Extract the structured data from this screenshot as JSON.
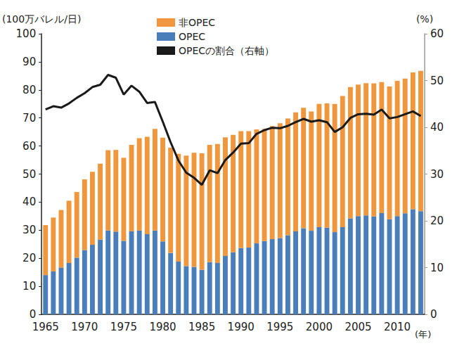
{
  "chart_data": {
    "type": "bar",
    "y_label": "(100万バレル/日)",
    "y2_label": "(%)",
    "x_label": "(年)",
    "categories": [
      "1965",
      null,
      null,
      null,
      null,
      "1970",
      null,
      null,
      null,
      null,
      "1975",
      null,
      null,
      null,
      null,
      "1980",
      null,
      null,
      null,
      null,
      "1985",
      null,
      null,
      null,
      null,
      "1990",
      null,
      null,
      null,
      null,
      "1995",
      null,
      null,
      null,
      null,
      "2000",
      null,
      null,
      null,
      null,
      "2005",
      null,
      null,
      null,
      null,
      "2010",
      null,
      null,
      null
    ],
    "series": [
      {
        "name": "OPEC",
        "type": "bar",
        "color": "#4a7ebb",
        "values": [
          14.0,
          15.3,
          16.7,
          18.3,
          20.2,
          22.9,
          24.8,
          26.6,
          29.9,
          29.5,
          26.2,
          29.6,
          29.9,
          28.6,
          29.9,
          26.0,
          21.9,
          18.8,
          17.2,
          16.9,
          15.9,
          18.6,
          18.3,
          20.8,
          22.1,
          23.6,
          23.8,
          25.3,
          26.1,
          26.8,
          27.2,
          28.2,
          29.6,
          30.7,
          29.8,
          31.1,
          30.9,
          29.3,
          31.1,
          34.2,
          35.0,
          35.3,
          34.9,
          36.1,
          33.9,
          35.0,
          36.0,
          37.5,
          36.8
        ]
      },
      {
        "name": "非OPEC",
        "type": "bar",
        "color": "#f0963c",
        "values": [
          17.8,
          19.2,
          20.5,
          22.2,
          23.4,
          25.2,
          26.0,
          27.1,
          28.6,
          29.1,
          29.6,
          30.8,
          32.9,
          34.7,
          36.2,
          37.0,
          37.5,
          38.4,
          39.4,
          40.7,
          41.5,
          41.8,
          42.4,
          42.3,
          41.9,
          41.7,
          41.5,
          40.6,
          40.0,
          40.3,
          40.9,
          41.6,
          42.4,
          42.9,
          42.5,
          43.9,
          44.3,
          45.7,
          46.7,
          46.8,
          46.9,
          47.1,
          47.4,
          46.7,
          47.3,
          48.2,
          48.0,
          48.7,
          50.0
        ]
      },
      {
        "name": "OPECの割合（右軸）",
        "type": "line",
        "axis": "y2",
        "color": "#1a1a1a",
        "line_style": "solid",
        "values": [
          43.8,
          44.5,
          44.2,
          45.1,
          46.3,
          47.3,
          48.6,
          49.1,
          51.2,
          50.6,
          47.0,
          48.9,
          47.6,
          45.2,
          45.4,
          41.2,
          36.8,
          32.9,
          30.3,
          29.2,
          27.7,
          30.8,
          30.2,
          33.0,
          34.6,
          36.5,
          36.6,
          38.6,
          39.4,
          39.9,
          39.8,
          40.3,
          41.1,
          41.8,
          41.2,
          41.5,
          41.1,
          39.0,
          40.0,
          42.0,
          42.8,
          42.9,
          42.7,
          43.8,
          41.9,
          42.2,
          42.8,
          43.4,
          42.4
        ]
      }
    ],
    "legend_order": [
      "非OPEC",
      "OPEC",
      "OPECの割合（右軸）"
    ],
    "ylim": [
      0,
      100
    ],
    "yticks": [
      0,
      10,
      20,
      30,
      40,
      50,
      60,
      70,
      80,
      90,
      100
    ],
    "y2lim": [
      0,
      60
    ],
    "y2ticks": [
      0,
      10,
      20,
      30,
      40,
      50,
      60
    ],
    "stacked": true,
    "grid": false,
    "legend": "top"
  }
}
